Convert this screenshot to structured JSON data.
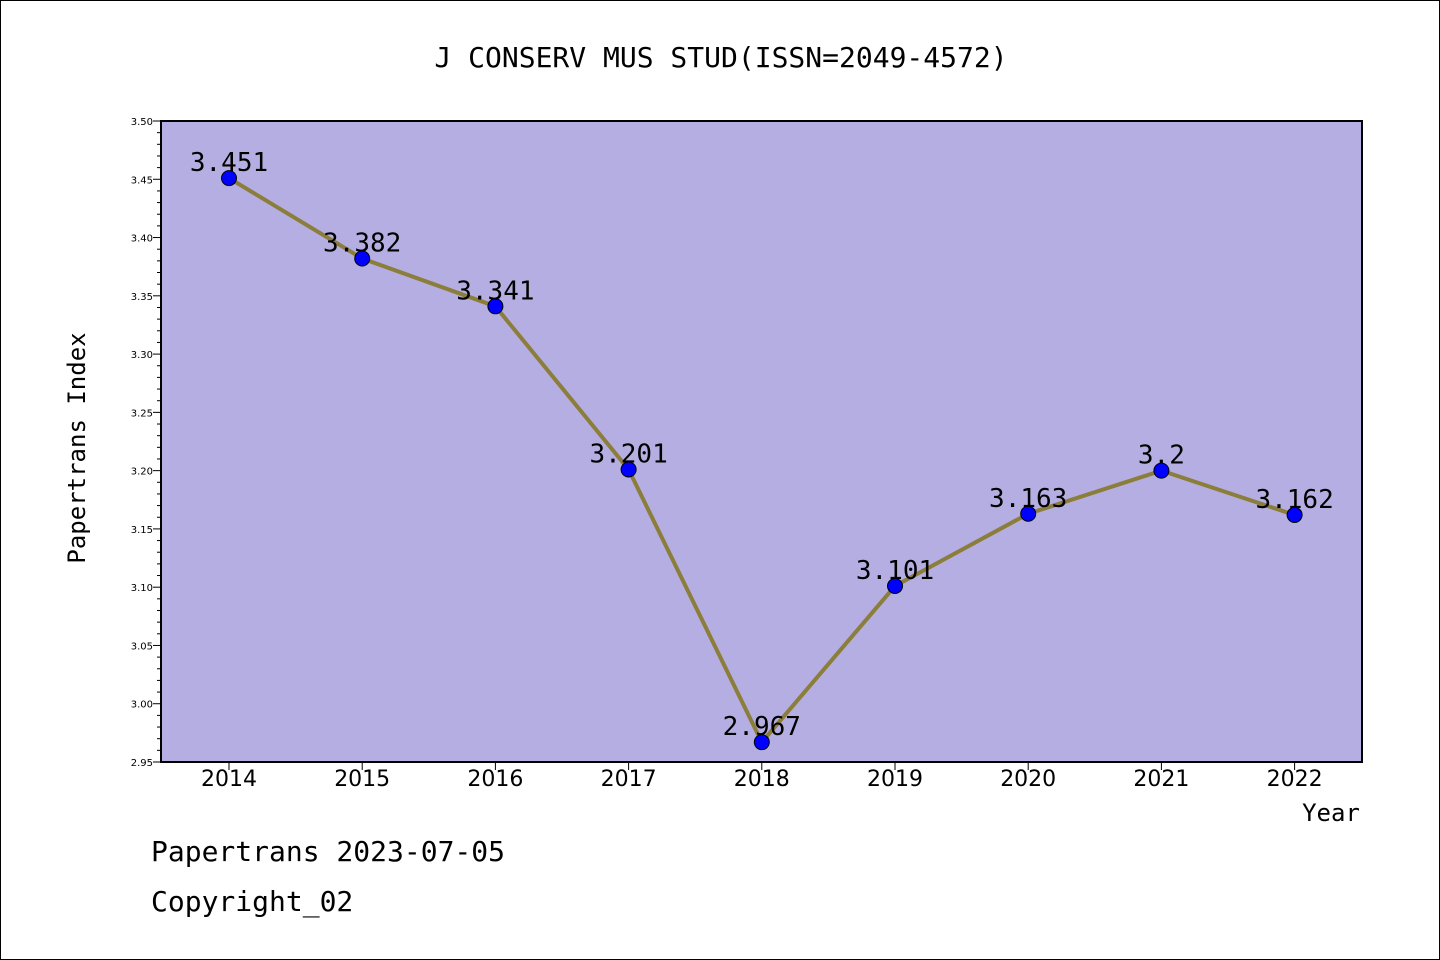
{
  "chart_data": {
    "type": "line",
    "title": "J CONSERV MUS STUD(ISSN=2049-4572)",
    "xlabel": "Year",
    "ylabel": "Papertrans Index",
    "categories": [
      "2014",
      "2015",
      "2016",
      "2017",
      "2018",
      "2019",
      "2020",
      "2021",
      "2022"
    ],
    "values": [
      3.451,
      3.382,
      3.341,
      3.201,
      2.967,
      3.101,
      3.163,
      3.2,
      3.162
    ],
    "data_labels": [
      "3.451",
      "3.382",
      "3.341",
      "3.201",
      "2.967",
      "3.101",
      "3.163",
      "3.2",
      "3.162"
    ],
    "ylim": [
      2.95,
      3.5
    ],
    "yticks": [
      "2.95",
      "3.00",
      "3.05",
      "3.10",
      "3.15",
      "3.20",
      "3.25",
      "3.30",
      "3.35",
      "3.40",
      "3.45",
      "3.50"
    ],
    "grid": false,
    "colors": {
      "plot_background": "#b5aee2",
      "line": "#8b7d3a",
      "marker": "#0000ff"
    }
  },
  "footer": {
    "date_text": "Papertrans 2023-07-05",
    "copyright_text": "Copyright_02"
  }
}
